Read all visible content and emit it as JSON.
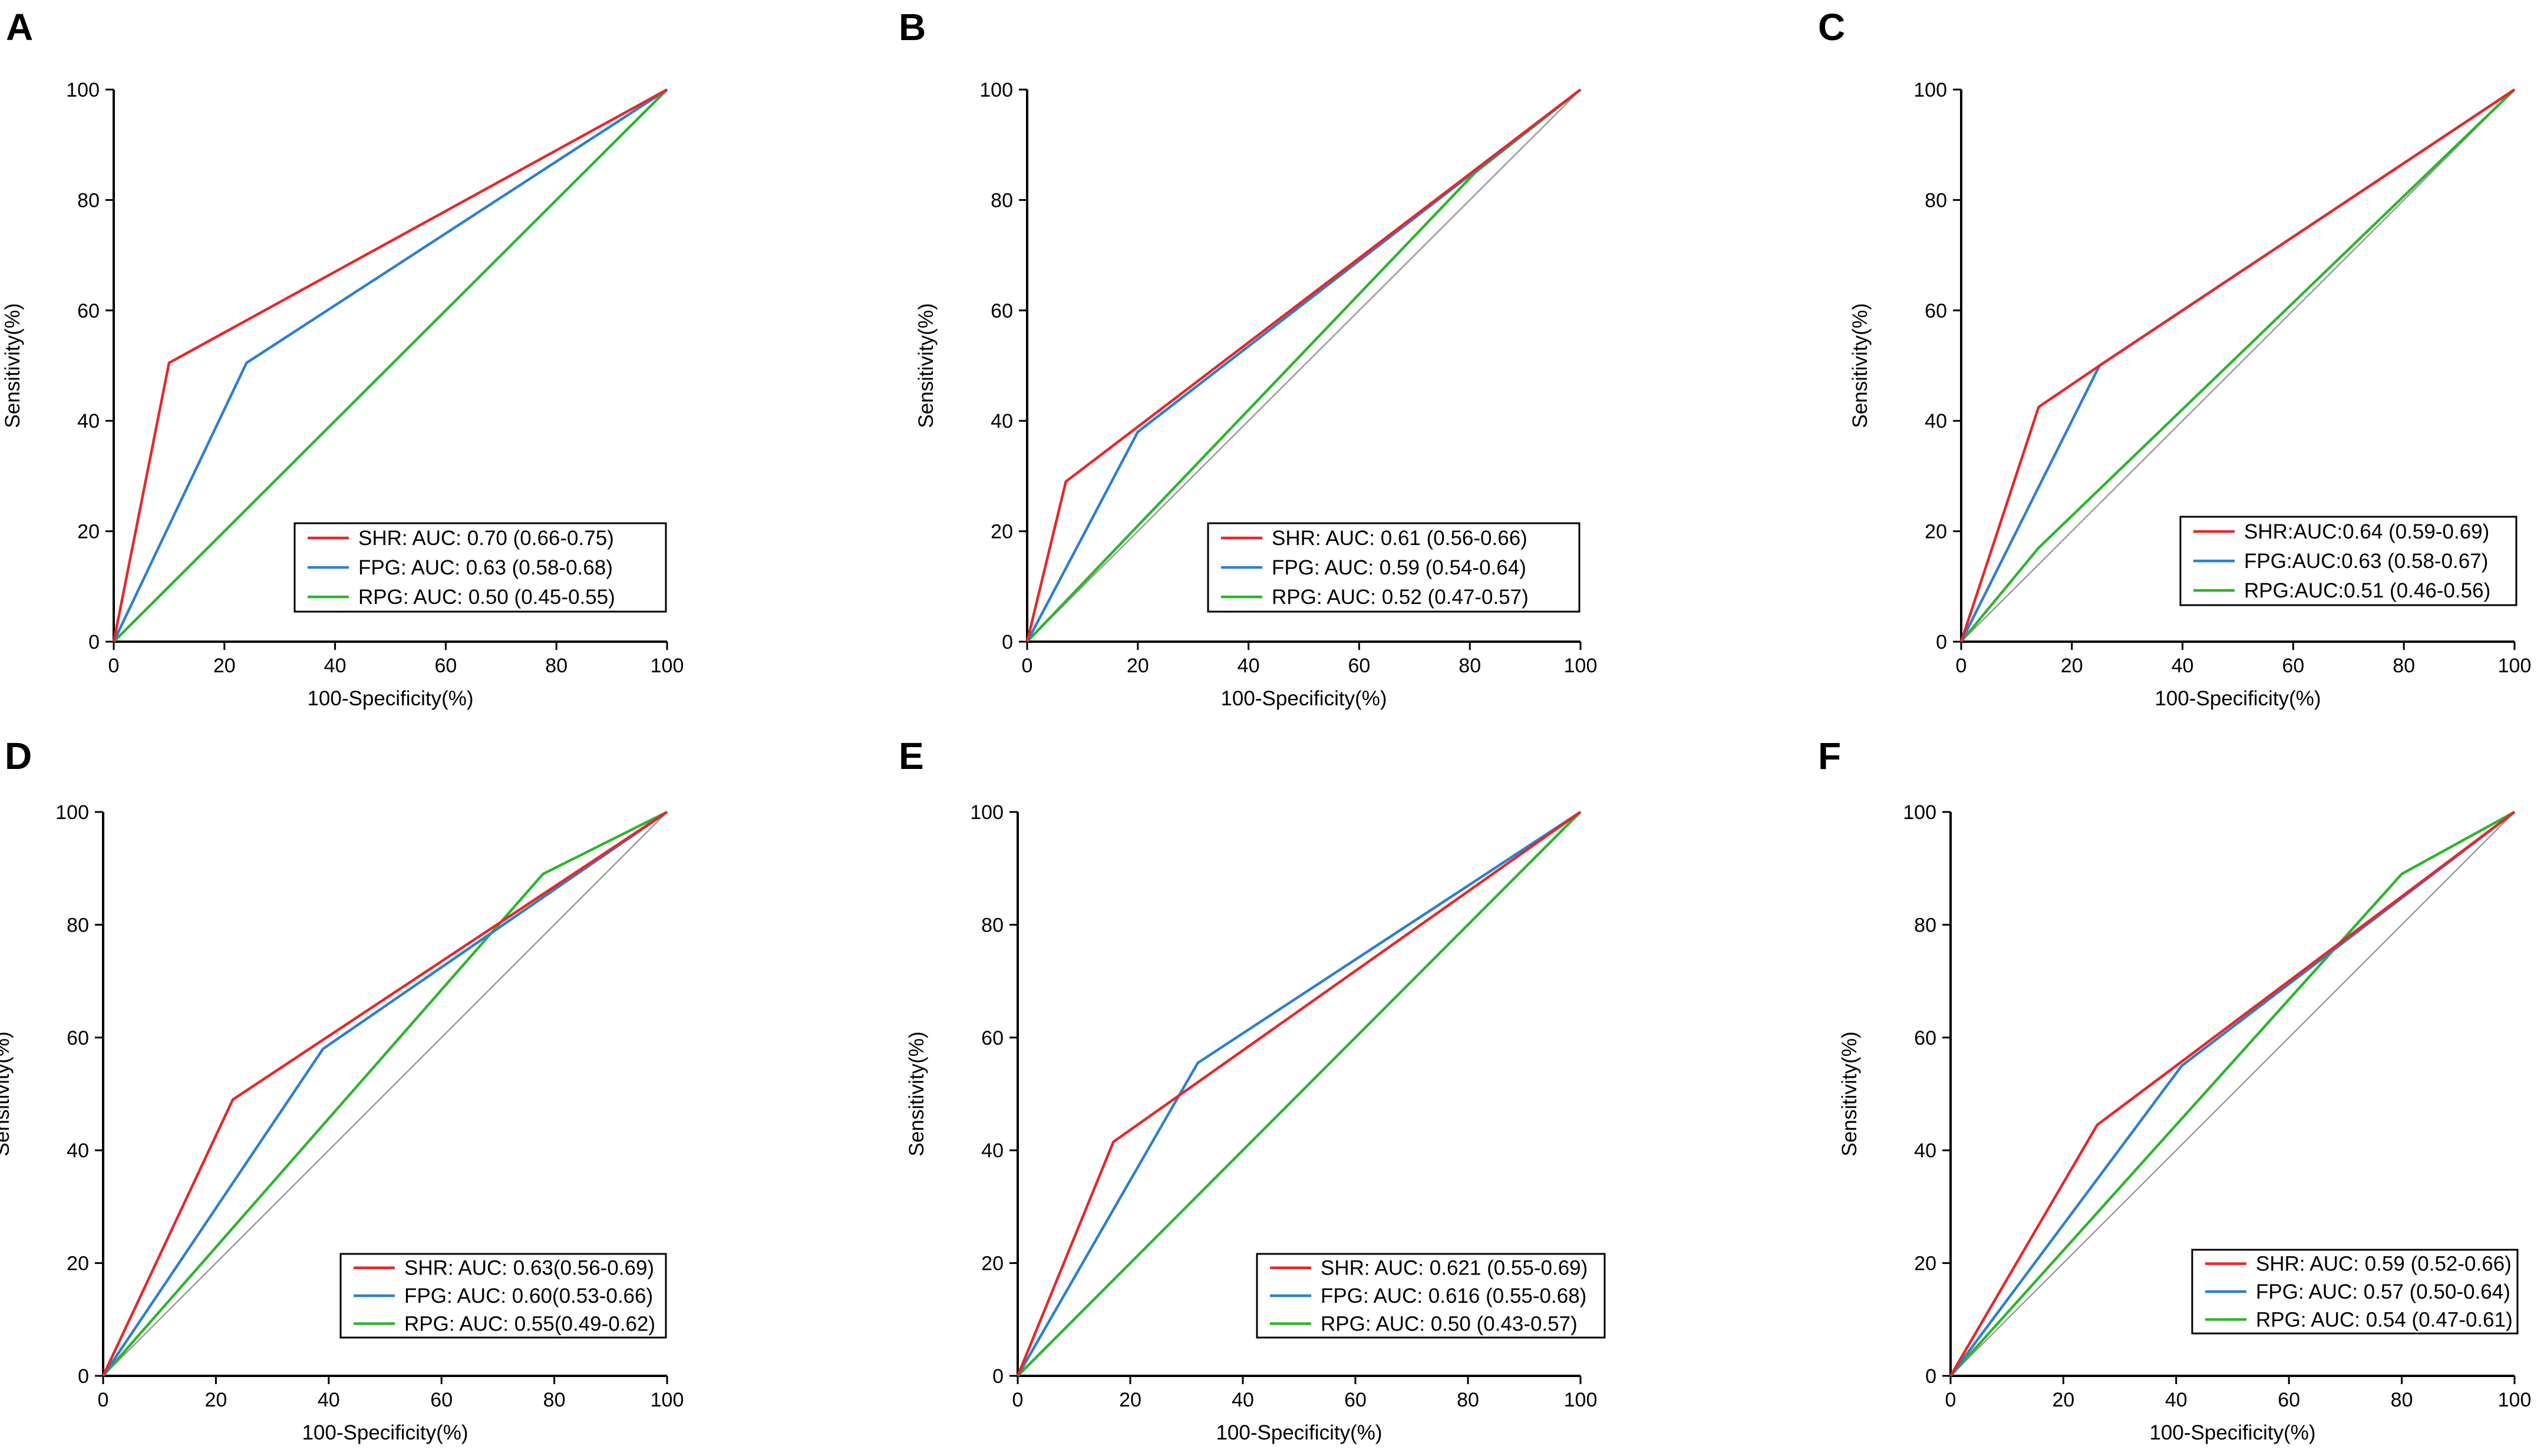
{
  "colors": {
    "SHR": "#e8262a",
    "FPG": "#2e7fcf",
    "RPG": "#2db52d",
    "reference": "#9a9a9a",
    "axis": "#000000"
  },
  "chart_data": [
    {
      "panel": "A",
      "type": "line",
      "xlabel": "100-Specificity(%)",
      "ylabel": "Sensitivity(%)",
      "xlim": [
        0,
        100
      ],
      "ylim": [
        0,
        100
      ],
      "xticks": [
        "0",
        "20",
        "40",
        "60",
        "80",
        "100"
      ],
      "yticks": [
        "0",
        "20",
        "40",
        "60",
        "80",
        "100"
      ],
      "legend_position": "bottom-right",
      "series": [
        {
          "name": "SHR",
          "legend": "SHR: AUC: 0.70 (0.66-0.75)",
          "x": [
            0,
            10,
            100
          ],
          "y": [
            0,
            50.5,
            100
          ]
        },
        {
          "name": "FPG",
          "legend": "FPG: AUC: 0.63 (0.58-0.68)",
          "x": [
            0,
            24,
            100
          ],
          "y": [
            0,
            50.5,
            100
          ]
        },
        {
          "name": "RPG",
          "legend": "RPG: AUC: 0.50 (0.45-0.55)",
          "x": [
            0,
            100
          ],
          "y": [
            0,
            100
          ]
        }
      ]
    },
    {
      "panel": "B",
      "type": "line",
      "xlabel": "100-Specificity(%)",
      "ylabel": "Sensitivity(%)",
      "xlim": [
        0,
        100
      ],
      "ylim": [
        0,
        100
      ],
      "xticks": [
        "0",
        "20",
        "40",
        "60",
        "80",
        "100"
      ],
      "yticks": [
        "0",
        "20",
        "40",
        "60",
        "80",
        "100"
      ],
      "legend_position": "bottom-right",
      "series": [
        {
          "name": "SHR",
          "legend": "SHR: AUC: 0.61 (0.56-0.66)",
          "x": [
            0,
            7,
            100
          ],
          "y": [
            0,
            29,
            100
          ]
        },
        {
          "name": "FPG",
          "legend": "FPG: AUC: 0.59 (0.54-0.64)",
          "x": [
            0,
            20,
            100
          ],
          "y": [
            0,
            38,
            100
          ]
        },
        {
          "name": "RPG",
          "legend": "RPG: AUC: 0.52 (0.47-0.57)",
          "x": [
            0,
            81,
            100
          ],
          "y": [
            0,
            85,
            100
          ]
        }
      ]
    },
    {
      "panel": "C",
      "type": "line",
      "xlabel": "100-Specificity(%)",
      "ylabel": "Sensitivity(%)",
      "xlim": [
        0,
        100
      ],
      "ylim": [
        0,
        100
      ],
      "xticks": [
        "0",
        "20",
        "40",
        "60",
        "80",
        "100"
      ],
      "yticks": [
        "0",
        "20",
        "40",
        "60",
        "80",
        "100"
      ],
      "legend_position": "bottom-right",
      "series": [
        {
          "name": "SHR",
          "legend": "SHR:AUC:0.64 (0.59-0.69)",
          "x": [
            0,
            14,
            25,
            100
          ],
          "y": [
            0,
            42.5,
            50,
            100
          ]
        },
        {
          "name": "FPG",
          "legend": "FPG:AUC:0.63 (0.58-0.67)",
          "x": [
            0,
            25,
            100
          ],
          "y": [
            0,
            50,
            100
          ]
        },
        {
          "name": "RPG",
          "legend": "RPG:AUC:0.51 (0.46-0.56)",
          "x": [
            0,
            14,
            100
          ],
          "y": [
            0,
            17,
            100
          ]
        }
      ]
    },
    {
      "panel": "D",
      "type": "line",
      "xlabel": "100-Specificity(%)",
      "ylabel": "Sensitivity(%)",
      "xlim": [
        0,
        100
      ],
      "ylim": [
        0,
        100
      ],
      "xticks": [
        "0",
        "20",
        "40",
        "60",
        "80",
        "100"
      ],
      "yticks": [
        "0",
        "20",
        "40",
        "60",
        "80",
        "100"
      ],
      "legend_position": "bottom-right",
      "series": [
        {
          "name": "SHR",
          "legend": "SHR: AUC: 0.63(0.56-0.69)",
          "x": [
            0,
            23,
            100
          ],
          "y": [
            0,
            49,
            100
          ]
        },
        {
          "name": "FPG",
          "legend": "FPG: AUC: 0.60(0.53-0.66)",
          "x": [
            0,
            39,
            100
          ],
          "y": [
            0,
            58,
            100
          ]
        },
        {
          "name": "RPG",
          "legend": "RPG: AUC: 0.55(0.49-0.62)",
          "x": [
            0,
            78,
            100
          ],
          "y": [
            0,
            89,
            100
          ]
        }
      ]
    },
    {
      "panel": "E",
      "type": "line",
      "xlabel": "100-Specificity(%)",
      "ylabel": "Sensitivity(%)",
      "xlim": [
        0,
        100
      ],
      "ylim": [
        0,
        100
      ],
      "xticks": [
        "0",
        "20",
        "40",
        "60",
        "80",
        "100"
      ],
      "yticks": [
        "0",
        "20",
        "40",
        "60",
        "80",
        "100"
      ],
      "legend_position": "bottom-right",
      "series": [
        {
          "name": "SHR",
          "legend": "SHR: AUC: 0.621 (0.55-0.69)",
          "x": [
            0,
            17,
            100
          ],
          "y": [
            0,
            41.5,
            100
          ]
        },
        {
          "name": "FPG",
          "legend": "FPG: AUC: 0.616 (0.55-0.68)",
          "x": [
            0,
            32,
            100
          ],
          "y": [
            0,
            55.5,
            100
          ]
        },
        {
          "name": "RPG",
          "legend": "RPG: AUC: 0.50 (0.43-0.57)",
          "x": [
            0,
            100
          ],
          "y": [
            0,
            100
          ]
        }
      ]
    },
    {
      "panel": "F",
      "type": "line",
      "xlabel": "100-Specificity(%)",
      "ylabel": "Sensitivity(%)",
      "xlim": [
        0,
        100
      ],
      "ylim": [
        0,
        100
      ],
      "xticks": [
        "0",
        "20",
        "40",
        "60",
        "80",
        "100"
      ],
      "yticks": [
        "0",
        "20",
        "40",
        "60",
        "80",
        "100"
      ],
      "legend_position": "bottom-right",
      "series": [
        {
          "name": "SHR",
          "legend": "SHR: AUC: 0.59 (0.52-0.66)",
          "x": [
            0,
            26,
            40,
            100
          ],
          "y": [
            0,
            44.5,
            55,
            100
          ]
        },
        {
          "name": "FPG",
          "legend": "FPG: AUC: 0.57 (0.50-0.64)",
          "x": [
            0,
            41,
            100
          ],
          "y": [
            0,
            55,
            100
          ]
        },
        {
          "name": "RPG",
          "legend": "RPG: AUC: 0.54 (0.47-0.61)",
          "x": [
            0,
            80,
            100
          ],
          "y": [
            0,
            89,
            100
          ]
        }
      ]
    }
  ]
}
